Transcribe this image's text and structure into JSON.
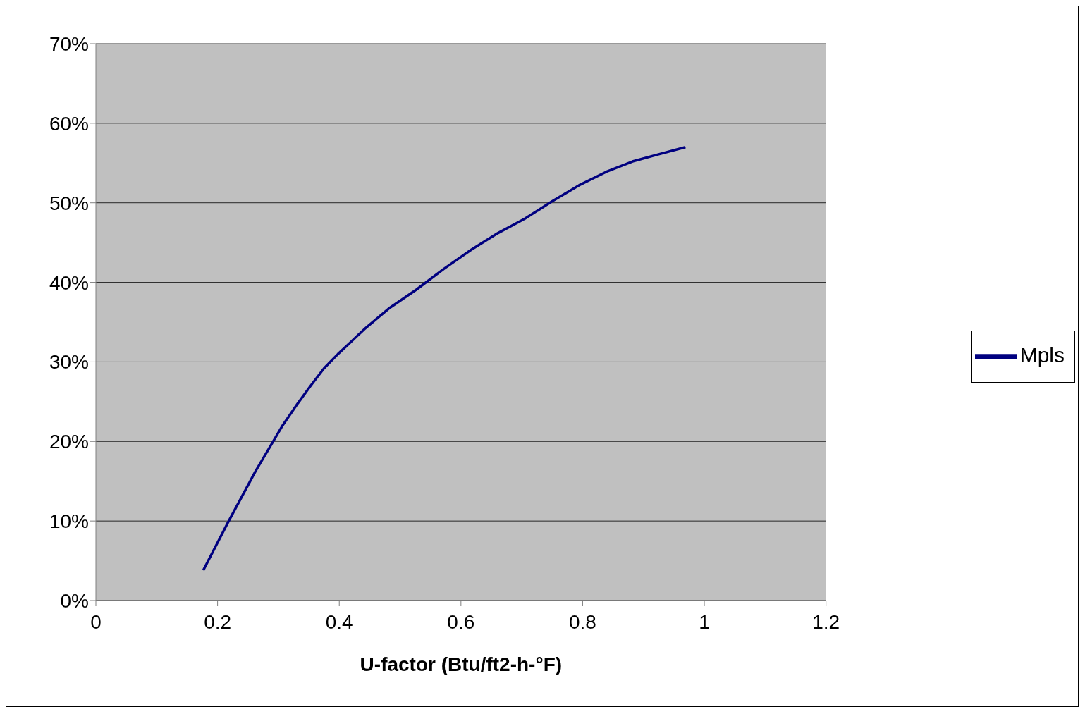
{
  "chart_data": {
    "type": "line",
    "xlabel": "U-factor (Btu/ft2-h-°F)",
    "x": [
      0.1765,
      0.217,
      0.262,
      0.306,
      0.332,
      0.353,
      0.375,
      0.398,
      0.419,
      0.441,
      0.483,
      0.527,
      0.572,
      0.617,
      0.661,
      0.705,
      0.75,
      0.794,
      0.839,
      0.882,
      0.925,
      0.969
    ],
    "series": [
      {
        "name": "Mpls",
        "color": "#000080",
        "values": [
          3.8,
          9.8,
          16.2,
          21.9,
          24.8,
          27.0,
          29.2,
          31.0,
          32.5,
          34.1,
          36.8,
          39.1,
          41.7,
          44.1,
          46.2,
          48.0,
          50.2,
          52.2,
          53.9,
          55.2,
          56.1,
          57.0
        ]
      }
    ],
    "xlim": [
      0,
      1.2
    ],
    "xticks": [
      0,
      0.2,
      0.4,
      0.6,
      0.8,
      1,
      1.2
    ],
    "ylim": [
      0,
      70
    ],
    "yticks": [
      {
        "value": 0,
        "label": "0%"
      },
      {
        "value": 10,
        "label": "10%"
      },
      {
        "value": 20,
        "label": "20%"
      },
      {
        "value": 30,
        "label": "30%"
      },
      {
        "value": 40,
        "label": "40%"
      },
      {
        "value": 50,
        "label": "50%"
      },
      {
        "value": 60,
        "label": "60%"
      },
      {
        "value": 70,
        "label": "70%"
      }
    ],
    "grid": "y",
    "legend": "right",
    "marker": "none",
    "line_style": "solid"
  }
}
